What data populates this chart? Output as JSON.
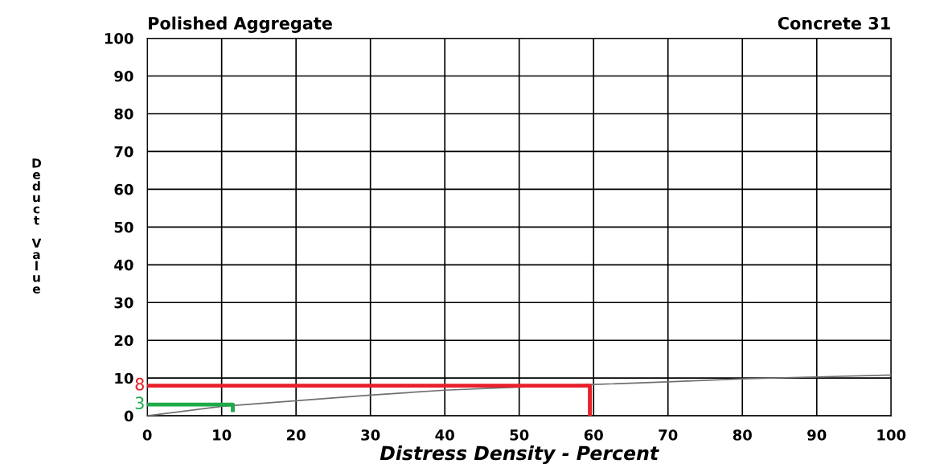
{
  "chart_data": {
    "type": "line",
    "title": "Polished Aggregate",
    "subtitle": "Concrete 31",
    "xlabel": "Distress Density - Percent",
    "ylabel": "Deduct Value",
    "series": [
      {
        "color": "#707070",
        "x": [
          0,
          10,
          20,
          30,
          40,
          50,
          60,
          70,
          80,
          90,
          100
        ],
        "values": [
          0,
          2.5,
          4,
          5.5,
          6.8,
          7.6,
          8.3,
          9,
          9.8,
          10.3,
          10.8
        ]
      },
      {
        "color": "#e8202a",
        "x": [
          0,
          59.5,
          59.5
        ],
        "values": [
          8,
          8,
          0
        ]
      },
      {
        "color": "#1faa4a",
        "x": [
          0,
          11.5,
          11.5
        ],
        "values": [
          3,
          3,
          1.5
        ]
      }
    ],
    "annotations": [
      {
        "text": "8",
        "x": 0,
        "y": 8
      },
      {
        "text": "3",
        "x": 0,
        "y": 3
      }
    ],
    "xlim": [
      0,
      100
    ],
    "xticks": [
      0,
      10,
      20,
      30,
      40,
      50,
      60,
      70,
      80,
      90,
      100
    ],
    "ylim": [
      0,
      100
    ],
    "yticks": [
      0,
      10,
      20,
      30,
      40,
      50,
      60,
      70,
      80,
      90,
      100
    ],
    "grid": true,
    "legend": false,
    "marker": "none",
    "line_style": "solid"
  }
}
